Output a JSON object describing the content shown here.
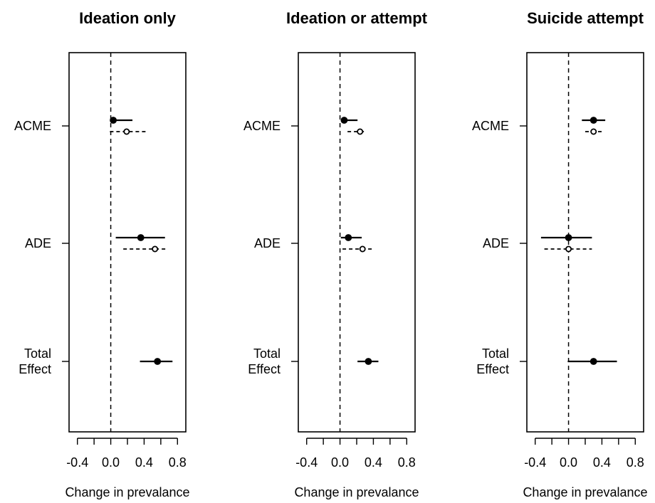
{
  "chart_data": [
    {
      "type": "forest",
      "title": "Ideation only",
      "xlabel": "Change in prevalance",
      "xlim": [
        -0.5,
        0.9
      ],
      "xticks": [
        "-0.4",
        "0.0",
        "0.4",
        "0.8"
      ],
      "rows": [
        {
          "label": "ACME",
          "estimates": [
            {
              "style": "solid",
              "marker": "filled",
              "est": 0.03,
              "lo": 0.0,
              "hi": 0.26
            },
            {
              "style": "dashed",
              "marker": "open",
              "est": 0.19,
              "lo": -0.01,
              "hi": 0.42
            }
          ]
        },
        {
          "label": "ADE",
          "estimates": [
            {
              "style": "solid",
              "marker": "filled",
              "est": 0.36,
              "lo": 0.06,
              "hi": 0.65
            },
            {
              "style": "dashed",
              "marker": "open",
              "est": 0.53,
              "lo": 0.15,
              "hi": 0.68
            }
          ]
        },
        {
          "label": "Total\nEffect",
          "estimates": [
            {
              "style": "solid",
              "marker": "filled",
              "est": 0.56,
              "lo": 0.35,
              "hi": 0.74
            }
          ]
        }
      ]
    },
    {
      "type": "forest",
      "title": "Ideation or attempt",
      "xlabel": "Change in prevalance",
      "xlim": [
        -0.5,
        0.9
      ],
      "xticks": [
        "-0.4",
        "0.0",
        "0.4",
        "0.8"
      ],
      "rows": [
        {
          "label": "ACME",
          "estimates": [
            {
              "style": "solid",
              "marker": "filled",
              "est": 0.05,
              "lo": 0.01,
              "hi": 0.21
            },
            {
              "style": "dashed",
              "marker": "open",
              "est": 0.24,
              "lo": 0.09,
              "hi": 0.3
            }
          ]
        },
        {
          "label": "ADE",
          "estimates": [
            {
              "style": "solid",
              "marker": "filled",
              "est": 0.1,
              "lo": 0.01,
              "hi": 0.26
            },
            {
              "style": "dashed",
              "marker": "open",
              "est": 0.27,
              "lo": 0.03,
              "hi": 0.4
            }
          ]
        },
        {
          "label": "Total\nEffect",
          "estimates": [
            {
              "style": "solid",
              "marker": "filled",
              "est": 0.34,
              "lo": 0.21,
              "hi": 0.46
            }
          ]
        }
      ]
    },
    {
      "type": "forest",
      "title": "Suicide attempt",
      "xlabel": "Change in prevalance",
      "xlim": [
        -0.5,
        0.9
      ],
      "xticks": [
        "-0.4",
        "0.0",
        "0.4",
        "0.8"
      ],
      "rows": [
        {
          "label": "ACME",
          "estimates": [
            {
              "style": "solid",
              "marker": "filled",
              "est": 0.3,
              "lo": 0.16,
              "hi": 0.44
            },
            {
              "style": "dashed",
              "marker": "open",
              "est": 0.3,
              "lo": 0.2,
              "hi": 0.43
            }
          ]
        },
        {
          "label": "ADE",
          "estimates": [
            {
              "style": "solid",
              "marker": "filled",
              "est": 0.0,
              "lo": -0.33,
              "hi": 0.28
            },
            {
              "style": "dashed",
              "marker": "open",
              "est": 0.0,
              "lo": -0.29,
              "hi": 0.28
            }
          ]
        },
        {
          "label": "Total\nEffect",
          "estimates": [
            {
              "style": "solid",
              "marker": "filled",
              "est": 0.3,
              "lo": -0.01,
              "hi": 0.58
            }
          ]
        }
      ]
    }
  ],
  "colors": {
    "ink": "#000000",
    "background": "#ffffff"
  }
}
